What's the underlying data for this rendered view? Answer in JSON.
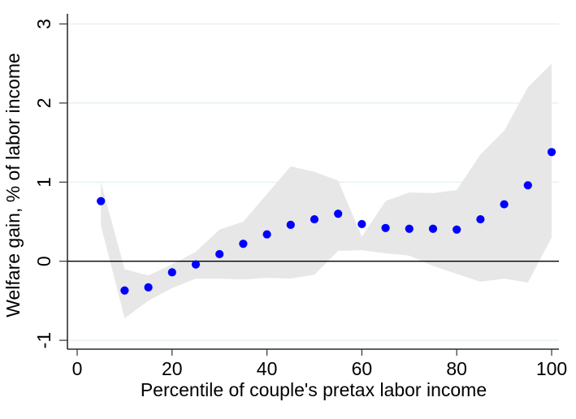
{
  "chart_data": {
    "type": "scatter",
    "title": "",
    "xlabel": "Percentile of couple's pretax labor income",
    "ylabel": "Welfare gain, % of labor income",
    "x_ticks": [
      0,
      20,
      40,
      60,
      80,
      100
    ],
    "y_ticks": [
      -1,
      0,
      1,
      2,
      3
    ],
    "xlim": [
      -2,
      101.5
    ],
    "ylim": [
      -1.11,
      3.13
    ],
    "grid": "horizontal-gridlines-at-y-ticks-except-zero",
    "zero_line": true,
    "legend": "none",
    "series": [
      {
        "name": "Welfare gain point estimates",
        "type": "scatter",
        "color": "#0000ff",
        "x": [
          5,
          10,
          15,
          20,
          25,
          30,
          35,
          40,
          45,
          50,
          55,
          60,
          65,
          70,
          75,
          80,
          85,
          90,
          95,
          100
        ],
        "y": [
          0.76,
          -0.37,
          -0.33,
          -0.14,
          -0.04,
          0.09,
          0.22,
          0.34,
          0.46,
          0.53,
          0.6,
          0.47,
          0.42,
          0.41,
          0.41,
          0.4,
          0.53,
          0.72,
          0.96,
          1.38
        ]
      },
      {
        "name": "Confidence band",
        "type": "area",
        "color": "#e7e7e7",
        "x": [
          5,
          10,
          15,
          20,
          25,
          30,
          35,
          40,
          45,
          50,
          55,
          60,
          65,
          70,
          75,
          80,
          85,
          90,
          95,
          100
        ],
        "upper": [
          1.0,
          -0.1,
          -0.18,
          -0.04,
          0.12,
          0.4,
          0.5,
          0.85,
          1.2,
          1.13,
          1.02,
          0.31,
          0.76,
          0.87,
          0.86,
          0.9,
          1.35,
          1.65,
          2.2,
          2.5
        ],
        "lower": [
          0.45,
          -0.72,
          -0.5,
          -0.34,
          -0.22,
          -0.22,
          -0.23,
          -0.21,
          -0.22,
          -0.17,
          0.13,
          0.14,
          0.1,
          0.07,
          -0.06,
          -0.16,
          -0.26,
          -0.22,
          -0.27,
          0.3
        ]
      }
    ],
    "colors": {
      "point": "#0000ff",
      "band": "#e7e7e7",
      "gridline": "#e1eef2",
      "axis": "#000000",
      "tick": "#333333",
      "zero_line": "#000000",
      "background": "#ffffff"
    }
  }
}
